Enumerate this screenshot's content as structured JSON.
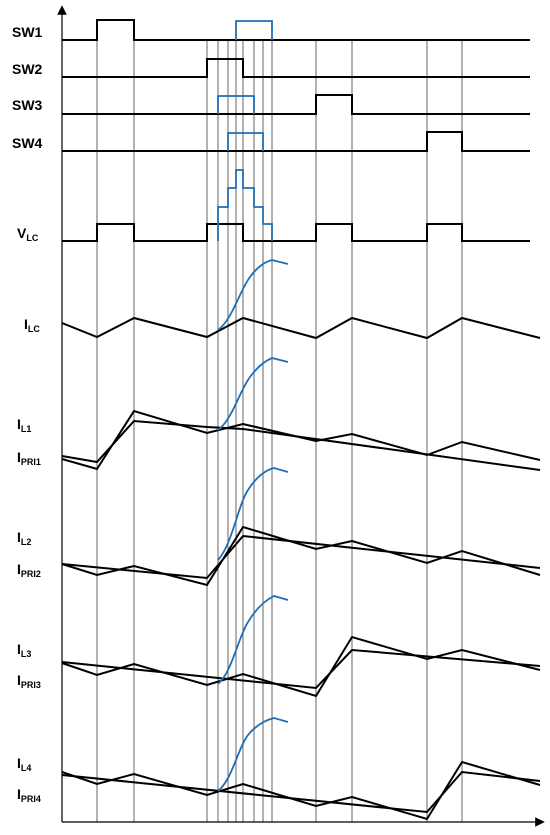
{
  "labels": {
    "sw1": "SW1",
    "sw2": "SW2",
    "sw3": "SW3",
    "sw4": "SW4",
    "vlc_main": "V",
    "vlc_sub": "LC",
    "ilc_main": "I",
    "ilc_sub": "LC",
    "il1_main": "I",
    "il1_sub": "L1",
    "ipri1_main": "I",
    "ipri1_sub": "PRI1",
    "il2_main": "I",
    "il2_sub": "L2",
    "ipri2_main": "I",
    "ipri2_sub": "PRI2",
    "il3_main": "I",
    "il3_sub": "L3",
    "ipri3_main": "I",
    "ipri3_sub": "PRI3",
    "il4_main": "I",
    "il4_sub": "L4",
    "ipri4_main": "I",
    "ipri4_sub": "PRI4"
  },
  "colors": {
    "trace": "#000000",
    "highlight": "#1f6fb5"
  }
}
